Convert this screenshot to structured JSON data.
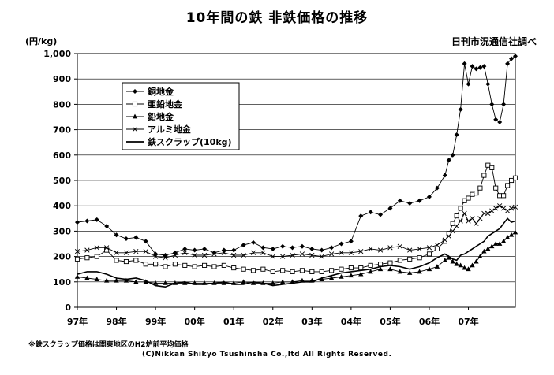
{
  "chart_data": {
    "type": "line",
    "title": "10年間の鉄 非鉄価格の推移",
    "source": "日刊市況通信社調べ",
    "ylabel": "(円/kg)",
    "ylim": [
      0,
      1000
    ],
    "yticks": [
      "0",
      "100",
      "200",
      "300",
      "400",
      "500",
      "600",
      "700",
      "800",
      "900",
      "1,000"
    ],
    "xlim": [
      0,
      11.2
    ],
    "xticks": [
      "97年",
      "98年",
      "99年",
      "00年",
      "01年",
      "02年",
      "03年",
      "04年",
      "05年",
      "06年",
      "07年"
    ],
    "series": [
      {
        "name": "銅地金",
        "marker": "diamond",
        "color": "#000000",
        "x": [
          0,
          0.25,
          0.5,
          0.75,
          1.0,
          1.25,
          1.5,
          1.75,
          2.0,
          2.25,
          2.5,
          2.75,
          3.0,
          3.25,
          3.5,
          3.75,
          4.0,
          4.25,
          4.5,
          4.75,
          5.0,
          5.25,
          5.5,
          5.75,
          6.0,
          6.25,
          6.5,
          6.75,
          7.0,
          7.25,
          7.5,
          7.75,
          8.0,
          8.25,
          8.5,
          8.75,
          9.0,
          9.2,
          9.4,
          9.5,
          9.6,
          9.7,
          9.8,
          9.9,
          10.0,
          10.1,
          10.2,
          10.3,
          10.4,
          10.5,
          10.6,
          10.7,
          10.8,
          10.9,
          11.0,
          11.1,
          11.2
        ],
        "values": [
          335,
          340,
          345,
          320,
          285,
          270,
          275,
          260,
          210,
          205,
          215,
          230,
          225,
          230,
          215,
          225,
          225,
          245,
          255,
          235,
          230,
          240,
          235,
          240,
          230,
          225,
          235,
          250,
          260,
          360,
          375,
          365,
          390,
          420,
          410,
          420,
          435,
          470,
          520,
          580,
          600,
          680,
          780,
          960,
          880,
          950,
          940,
          945,
          950,
          880,
          800,
          740,
          730,
          800,
          960,
          980,
          990
        ]
      },
      {
        "name": "亜鉛地金",
        "marker": "square",
        "color": "#000000",
        "x": [
          0,
          0.25,
          0.5,
          0.75,
          1.0,
          1.25,
          1.5,
          1.75,
          2.0,
          2.25,
          2.5,
          2.75,
          3.0,
          3.25,
          3.5,
          3.75,
          4.0,
          4.25,
          4.5,
          4.75,
          5.0,
          5.25,
          5.5,
          5.75,
          6.0,
          6.25,
          6.5,
          6.75,
          7.0,
          7.25,
          7.5,
          7.75,
          8.0,
          8.25,
          8.5,
          8.75,
          9.0,
          9.2,
          9.4,
          9.5,
          9.6,
          9.7,
          9.8,
          9.9,
          10.0,
          10.1,
          10.2,
          10.3,
          10.4,
          10.5,
          10.6,
          10.7,
          10.8,
          10.9,
          11.0,
          11.1,
          11.2
        ],
        "values": [
          190,
          195,
          200,
          225,
          185,
          180,
          185,
          170,
          170,
          160,
          170,
          165,
          160,
          165,
          160,
          165,
          155,
          150,
          145,
          150,
          140,
          145,
          140,
          145,
          140,
          140,
          145,
          150,
          155,
          155,
          165,
          170,
          175,
          185,
          190,
          195,
          210,
          230,
          260,
          290,
          330,
          360,
          390,
          420,
          430,
          445,
          450,
          470,
          520,
          560,
          550,
          470,
          440,
          440,
          480,
          500,
          510
        ]
      },
      {
        "name": "鉛地金",
        "marker": "triangle",
        "color": "#000000",
        "x": [
          0,
          0.25,
          0.5,
          0.75,
          1.0,
          1.25,
          1.5,
          1.75,
          2.0,
          2.25,
          2.5,
          2.75,
          3.0,
          3.25,
          3.5,
          3.75,
          4.0,
          4.25,
          4.5,
          4.75,
          5.0,
          5.25,
          5.5,
          5.75,
          6.0,
          6.25,
          6.5,
          6.75,
          7.0,
          7.25,
          7.5,
          7.75,
          8.0,
          8.25,
          8.5,
          8.75,
          9.0,
          9.2,
          9.4,
          9.5,
          9.6,
          9.7,
          9.8,
          9.9,
          10.0,
          10.1,
          10.2,
          10.3,
          10.4,
          10.5,
          10.6,
          10.7,
          10.8,
          10.9,
          11.0,
          11.1,
          11.2
        ],
        "values": [
          120,
          115,
          110,
          105,
          105,
          105,
          100,
          100,
          95,
          95,
          95,
          95,
          95,
          95,
          95,
          95,
          95,
          100,
          95,
          95,
          95,
          100,
          100,
          105,
          105,
          110,
          115,
          120,
          125,
          130,
          140,
          150,
          150,
          140,
          135,
          140,
          150,
          160,
          185,
          195,
          180,
          170,
          165,
          155,
          150,
          165,
          180,
          200,
          220,
          230,
          240,
          250,
          250,
          260,
          275,
          285,
          295
        ]
      },
      {
        "name": "アルミ地金",
        "marker": "x",
        "color": "#000000",
        "x": [
          0,
          0.25,
          0.5,
          0.75,
          1.0,
          1.25,
          1.5,
          1.75,
          2.0,
          2.25,
          2.5,
          2.75,
          3.0,
          3.25,
          3.5,
          3.75,
          4.0,
          4.25,
          4.5,
          4.75,
          5.0,
          5.25,
          5.5,
          5.75,
          6.0,
          6.25,
          6.5,
          6.75,
          7.0,
          7.25,
          7.5,
          7.75,
          8.0,
          8.25,
          8.5,
          8.75,
          9.0,
          9.2,
          9.4,
          9.5,
          9.6,
          9.7,
          9.8,
          9.9,
          10.0,
          10.1,
          10.2,
          10.3,
          10.4,
          10.5,
          10.6,
          10.7,
          10.8,
          10.9,
          11.0,
          11.1,
          11.2
        ],
        "values": [
          220,
          225,
          235,
          235,
          215,
          215,
          220,
          220,
          200,
          195,
          205,
          215,
          205,
          205,
          210,
          215,
          205,
          205,
          215,
          215,
          200,
          200,
          205,
          210,
          205,
          200,
          210,
          215,
          215,
          220,
          230,
          225,
          235,
          240,
          225,
          230,
          235,
          245,
          265,
          280,
          300,
          320,
          340,
          370,
          340,
          350,
          330,
          350,
          370,
          370,
          380,
          390,
          400,
          390,
          380,
          390,
          395
        ]
      },
      {
        "name": "鉄スクラップ(10kg)",
        "marker": "none",
        "color": "#000000",
        "x": [
          0,
          0.25,
          0.5,
          0.75,
          1.0,
          1.25,
          1.5,
          1.75,
          2.0,
          2.25,
          2.5,
          2.75,
          3.0,
          3.25,
          3.5,
          3.75,
          4.0,
          4.25,
          4.5,
          4.75,
          5.0,
          5.25,
          5.5,
          5.75,
          6.0,
          6.25,
          6.5,
          6.75,
          7.0,
          7.25,
          7.5,
          7.75,
          8.0,
          8.25,
          8.5,
          8.75,
          9.0,
          9.2,
          9.4,
          9.5,
          9.6,
          9.7,
          9.8,
          9.9,
          10.0,
          10.1,
          10.2,
          10.3,
          10.4,
          10.5,
          10.6,
          10.7,
          10.8,
          10.9,
          11.0,
          11.1,
          11.2
        ],
        "values": [
          130,
          140,
          140,
          130,
          115,
          110,
          115,
          105,
          85,
          80,
          95,
          100,
          90,
          90,
          95,
          100,
          90,
          90,
          100,
          95,
          85,
          90,
          95,
          100,
          100,
          115,
          125,
          135,
          140,
          145,
          150,
          160,
          165,
          160,
          150,
          160,
          175,
          195,
          210,
          200,
          190,
          185,
          205,
          210,
          220,
          230,
          240,
          250,
          260,
          280,
          290,
          300,
          310,
          330,
          350,
          335,
          340
        ]
      }
    ],
    "legend_position": "top-left",
    "note": "※鉄スクラップ価格は関東地区のH2炉前平均価格",
    "copyright": "(C)Nikkan Shikyo Tsushinsha Co.,ltd All Rights Reserved."
  }
}
